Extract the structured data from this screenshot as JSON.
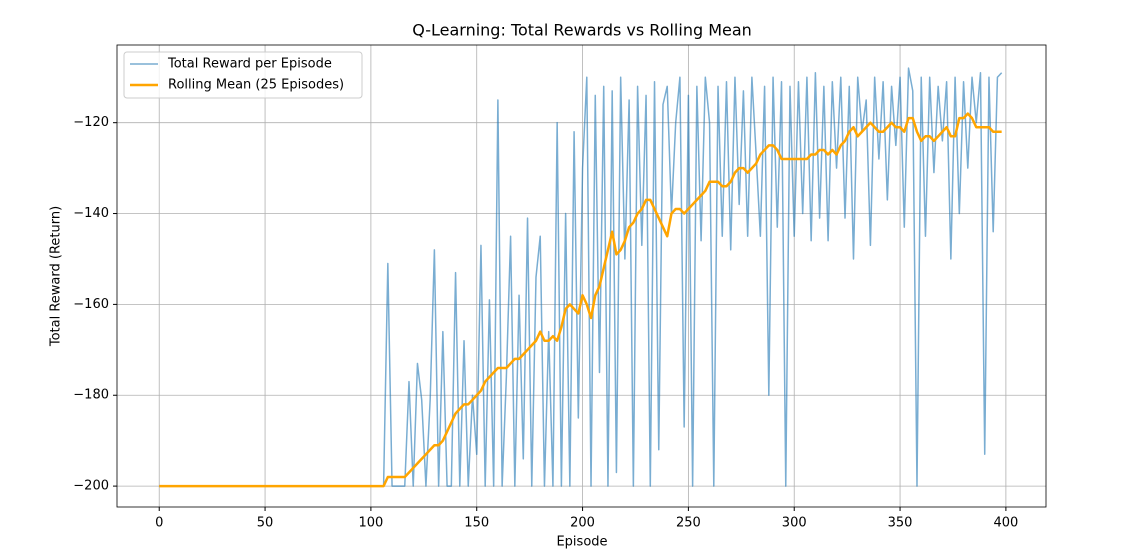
{
  "chart_data": {
    "type": "line",
    "title": "Q-Learning: Total Rewards vs Rolling Mean",
    "x_label": "Episode",
    "y_label": "Total Reward (Return)",
    "x": [
      0,
      106,
      108,
      110,
      112,
      114,
      116,
      118,
      120,
      122,
      124,
      126,
      128,
      130,
      132,
      134,
      136,
      138,
      140,
      142,
      144,
      146,
      148,
      150,
      152,
      154,
      156,
      158,
      160,
      162,
      164,
      166,
      168,
      170,
      172,
      174,
      176,
      178,
      180,
      182,
      184,
      186,
      188,
      190,
      192,
      194,
      196,
      198,
      200,
      202,
      204,
      206,
      208,
      210,
      212,
      214,
      216,
      218,
      220,
      222,
      224,
      226,
      228,
      230,
      232,
      234,
      236,
      238,
      240,
      242,
      244,
      246,
      248,
      250,
      252,
      254,
      256,
      258,
      260,
      262,
      264,
      266,
      268,
      270,
      272,
      274,
      276,
      278,
      280,
      282,
      284,
      286,
      288,
      290,
      292,
      294,
      296,
      298,
      300,
      302,
      304,
      306,
      308,
      310,
      312,
      314,
      316,
      318,
      320,
      322,
      324,
      326,
      328,
      330,
      332,
      334,
      336,
      338,
      340,
      342,
      344,
      346,
      348,
      350,
      352,
      354,
      356,
      358,
      360,
      362,
      364,
      366,
      368,
      370,
      372,
      374,
      376,
      378,
      380,
      382,
      384,
      386,
      388,
      390,
      392,
      394,
      396,
      398
    ],
    "series": [
      {
        "name": "Total Reward per Episode",
        "color": "#1f77b4",
        "width": 1.5,
        "opacity": 0.6,
        "values": [
          -200,
          -200,
          -151,
          -200,
          -200,
          -200,
          -200,
          -177,
          -200,
          -173,
          -181,
          -200,
          -181,
          -148,
          -200,
          -166,
          -200,
          -200,
          -153,
          -200,
          -168,
          -200,
          -180,
          -193,
          -147,
          -200,
          -159,
          -200,
          -115,
          -200,
          -176,
          -145,
          -200,
          -158,
          -194,
          -141,
          -200,
          -154,
          -145,
          -200,
          -166,
          -200,
          -120,
          -200,
          -140,
          -200,
          -122,
          -185,
          -130,
          -110,
          -200,
          -114,
          -175,
          -112,
          -200,
          -113,
          -197,
          -110,
          -150,
          -115,
          -200,
          -112,
          -147,
          -114,
          -200,
          -111,
          -192,
          -116,
          -112,
          -140,
          -120,
          -110,
          -187,
          -114,
          -200,
          -112,
          -146,
          -110,
          -120,
          -200,
          -112,
          -145,
          -111,
          -148,
          -110,
          -138,
          -113,
          -145,
          -110,
          -127,
          -145,
          -112,
          -180,
          -110,
          -143,
          -111,
          -200,
          -112,
          -145,
          -111,
          -140,
          -110,
          -146,
          -109,
          -141,
          -112,
          -146,
          -111,
          -130,
          -110,
          -141,
          -112,
          -150,
          -110,
          -122,
          -115,
          -147,
          -110,
          -128,
          -111,
          -137,
          -112,
          -125,
          -110,
          -143,
          -108,
          -113,
          -200,
          -110,
          -145,
          -110,
          -131,
          -112,
          -124,
          -111,
          -150,
          -110,
          -140,
          -111,
          -130,
          -110,
          -120,
          -109,
          -193,
          -110,
          -144,
          -110,
          -109
        ]
      },
      {
        "name": "Rolling Mean (25 Episodes)",
        "color": "#ffa500",
        "width": 2.5,
        "opacity": 1,
        "values": [
          -200,
          -200,
          -198,
          -198,
          -198,
          -198,
          -198,
          -197,
          -196,
          -195,
          -194,
          -193,
          -192,
          -191,
          -191,
          -190,
          -188,
          -186,
          -184,
          -183,
          -182,
          -182,
          -181,
          -180,
          -179,
          -177,
          -176,
          -175,
          -174,
          -174,
          -174,
          -173,
          -172,
          -172,
          -171,
          -170,
          -169,
          -168,
          -166,
          -168,
          -168,
          -167,
          -168,
          -165,
          -161,
          -160,
          -161,
          -162,
          -158,
          -160,
          -163,
          -158,
          -156,
          -152,
          -148,
          -144,
          -149,
          -148,
          -146,
          -143,
          -142,
          -140,
          -139,
          -137,
          -137,
          -139,
          -141,
          -143,
          -145,
          -140,
          -139,
          -139,
          -140,
          -139,
          -138,
          -137,
          -136,
          -135,
          -133,
          -133,
          -133,
          -134,
          -134,
          -133,
          -131,
          -130,
          -130,
          -131,
          -130,
          -129,
          -127,
          -126,
          -125,
          -125,
          -126,
          -128,
          -128,
          -128,
          -128,
          -128,
          -128,
          -128,
          -127,
          -127,
          -126,
          -126,
          -127,
          -126,
          -127,
          -125,
          -124,
          -122,
          -121,
          -123,
          -122,
          -121,
          -120,
          -121,
          -122,
          -122,
          -121,
          -120,
          -121,
          -121,
          -122,
          -119,
          -119,
          -122,
          -124,
          -123,
          -123,
          -124,
          -123,
          -122,
          -121,
          -123,
          -123,
          -119,
          -119,
          -118,
          -119,
          -121,
          -121,
          -121,
          -121,
          -122,
          -122,
          -122
        ]
      }
    ],
    "xlim": [
      -19.95,
      418.95
    ],
    "ylim": [
      -204.6,
      -102.9
    ],
    "xticks": [
      0,
      50,
      100,
      150,
      200,
      250,
      300,
      350,
      400
    ],
    "yticks": [
      {
        "value": -200,
        "label": "−200"
      },
      {
        "value": -180,
        "label": "−180"
      },
      {
        "value": -160,
        "label": "−160"
      },
      {
        "value": -140,
        "label": "−140"
      },
      {
        "value": -120,
        "label": "−120"
      }
    ],
    "grid": true,
    "legend": "upper-left"
  }
}
